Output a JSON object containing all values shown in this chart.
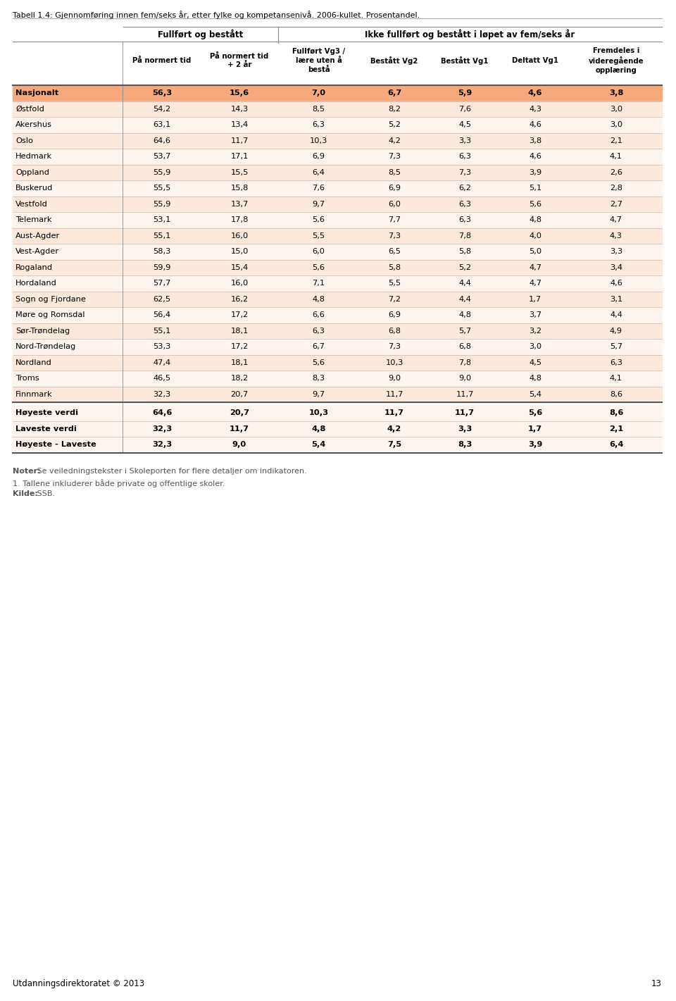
{
  "title": "Tabell 1.4: Gjennomføring innen fem/seks år, etter fylke og kompetansenivå. 2006-kullet. Prosentandel.",
  "col_group1": "Fullført og bestått",
  "col_group2": "Ikke fullført og bestått i løpet av fem/seks år",
  "col_headers": [
    "På normert tid",
    "På normert tid\n+ 2 år",
    "Fullført Vg3 /\nlære uten å\nbestå",
    "Bestått Vg2",
    "Bestått Vg1",
    "Deltatt Vg1",
    "Fremdeles i\nvideregående\nopplæring"
  ],
  "rows": [
    {
      "name": "Nasjonalt",
      "values": [
        56.3,
        15.6,
        7.0,
        6.7,
        5.9,
        4.6,
        3.8
      ],
      "nasjonalt": true,
      "summary": false
    },
    {
      "name": "Østfold",
      "values": [
        54.2,
        14.3,
        8.5,
        8.2,
        7.6,
        4.3,
        3.0
      ],
      "nasjonalt": false,
      "summary": false
    },
    {
      "name": "Akershus",
      "values": [
        63.1,
        13.4,
        6.3,
        5.2,
        4.5,
        4.6,
        3.0
      ],
      "nasjonalt": false,
      "summary": false
    },
    {
      "name": "Oslo",
      "values": [
        64.6,
        11.7,
        10.3,
        4.2,
        3.3,
        3.8,
        2.1
      ],
      "nasjonalt": false,
      "summary": false
    },
    {
      "name": "Hedmark",
      "values": [
        53.7,
        17.1,
        6.9,
        7.3,
        6.3,
        4.6,
        4.1
      ],
      "nasjonalt": false,
      "summary": false
    },
    {
      "name": "Oppland",
      "values": [
        55.9,
        15.5,
        6.4,
        8.5,
        7.3,
        3.9,
        2.6
      ],
      "nasjonalt": false,
      "summary": false
    },
    {
      "name": "Buskerud",
      "values": [
        55.5,
        15.8,
        7.6,
        6.9,
        6.2,
        5.1,
        2.8
      ],
      "nasjonalt": false,
      "summary": false
    },
    {
      "name": "Vestfold",
      "values": [
        55.9,
        13.7,
        9.7,
        6.0,
        6.3,
        5.6,
        2.7
      ],
      "nasjonalt": false,
      "summary": false
    },
    {
      "name": "Telemark",
      "values": [
        53.1,
        17.8,
        5.6,
        7.7,
        6.3,
        4.8,
        4.7
      ],
      "nasjonalt": false,
      "summary": false
    },
    {
      "name": "Aust-Agder",
      "values": [
        55.1,
        16.0,
        5.5,
        7.3,
        7.8,
        4.0,
        4.3
      ],
      "nasjonalt": false,
      "summary": false
    },
    {
      "name": "Vest-Agder",
      "values": [
        58.3,
        15.0,
        6.0,
        6.5,
        5.8,
        5.0,
        3.3
      ],
      "nasjonalt": false,
      "summary": false
    },
    {
      "name": "Rogaland",
      "values": [
        59.9,
        15.4,
        5.6,
        5.8,
        5.2,
        4.7,
        3.4
      ],
      "nasjonalt": false,
      "summary": false
    },
    {
      "name": "Hordaland",
      "values": [
        57.7,
        16.0,
        7.1,
        5.5,
        4.4,
        4.7,
        4.6
      ],
      "nasjonalt": false,
      "summary": false
    },
    {
      "name": "Sogn og Fjordane",
      "values": [
        62.5,
        16.2,
        4.8,
        7.2,
        4.4,
        1.7,
        3.1
      ],
      "nasjonalt": false,
      "summary": false
    },
    {
      "name": "Møre og Romsdal",
      "values": [
        56.4,
        17.2,
        6.6,
        6.9,
        4.8,
        3.7,
        4.4
      ],
      "nasjonalt": false,
      "summary": false
    },
    {
      "name": "Sør-Trøndelag",
      "values": [
        55.1,
        18.1,
        6.3,
        6.8,
        5.7,
        3.2,
        4.9
      ],
      "nasjonalt": false,
      "summary": false
    },
    {
      "name": "Nord-Trøndelag",
      "values": [
        53.3,
        17.2,
        6.7,
        7.3,
        6.8,
        3.0,
        5.7
      ],
      "nasjonalt": false,
      "summary": false
    },
    {
      "name": "Nordland",
      "values": [
        47.4,
        18.1,
        5.6,
        10.3,
        7.8,
        4.5,
        6.3
      ],
      "nasjonalt": false,
      "summary": false
    },
    {
      "name": "Troms",
      "values": [
        46.5,
        18.2,
        8.3,
        9.0,
        9.0,
        4.8,
        4.1
      ],
      "nasjonalt": false,
      "summary": false
    },
    {
      "name": "Finnmark",
      "values": [
        32.3,
        20.7,
        9.7,
        11.7,
        11.7,
        5.4,
        8.6
      ],
      "nasjonalt": false,
      "summary": false
    },
    {
      "name": "Høyeste verdi",
      "values": [
        64.6,
        20.7,
        10.3,
        11.7,
        11.7,
        5.6,
        8.6
      ],
      "nasjonalt": false,
      "summary": true
    },
    {
      "name": "Laveste verdi",
      "values": [
        32.3,
        11.7,
        4.8,
        4.2,
        3.3,
        1.7,
        2.1
      ],
      "nasjonalt": false,
      "summary": true
    },
    {
      "name": "Høyeste - Laveste",
      "values": [
        32.3,
        9.0,
        5.4,
        7.5,
        8.3,
        3.9,
        6.4
      ],
      "nasjonalt": false,
      "summary": true
    }
  ],
  "footer_lines": [
    {
      "text": "Noter:",
      "bold": true,
      "rest": " Se veiledningstekster i Skoleporten for flere detaljer om indikatoren."
    },
    {
      "text": "1. Tallene inkluderer både private og offentlige skoler.",
      "bold": false,
      "rest": ""
    },
    {
      "text": "Kilde:",
      "bold": true,
      "rest": " SSB."
    }
  ],
  "page_number": "13",
  "publisher": "Utdanningsdirektoratet © 2013",
  "color_nasjonalt": "#f5a97d",
  "color_odd": "#fde9dc",
  "color_even": "#fef4ee",
  "color_summary": "#fde9dc",
  "color_header_bg": "#ffffff",
  "color_line_dark": "#888888",
  "color_line_light": "#d0b8a8",
  "color_line_thick": "#555555"
}
